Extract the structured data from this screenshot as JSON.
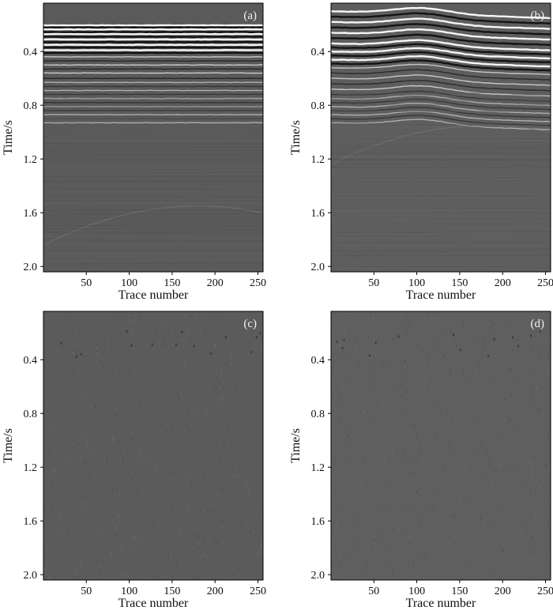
{
  "chart_data": [
    {
      "type": "heatmap",
      "panel_label": "(a)",
      "xlabel": "Trace number",
      "ylabel": "Time/s",
      "xticks": [
        50,
        100,
        150,
        200,
        250
      ],
      "yticks": [
        0.4,
        0.8,
        1.2,
        1.6,
        2.0
      ],
      "xlim": [
        0,
        256
      ],
      "ylim": [
        0.04,
        2.04
      ],
      "colormap": "gray",
      "content": "seismic section",
      "colors": {
        "background": "#5a5a5a",
        "bright": "#ffffff",
        "dark": "#101010"
      }
    },
    {
      "type": "heatmap",
      "panel_label": "(b)",
      "xlabel": "Trace number",
      "ylabel": "Time/s",
      "xticks": [
        50,
        100,
        150,
        200,
        250
      ],
      "yticks": [
        0.4,
        0.8,
        1.2,
        1.6,
        2.0
      ],
      "xlim": [
        0,
        256
      ],
      "ylim": [
        0.04,
        2.04
      ],
      "colormap": "gray",
      "content": "seismic section",
      "colors": {
        "background": "#5e5e5e",
        "bright": "#ffffff",
        "dark": "#101010"
      }
    },
    {
      "type": "heatmap",
      "panel_label": "(c)",
      "xlabel": "Trace number",
      "ylabel": "Time/s",
      "xticks": [
        50,
        100,
        150,
        200,
        250
      ],
      "yticks": [
        0.4,
        0.8,
        1.2,
        1.6,
        2.0
      ],
      "xlim": [
        0,
        256
      ],
      "ylim": [
        0.04,
        2.04
      ],
      "colormap": "gray",
      "content": "residual noise",
      "colors": {
        "background": "#5b5b5b"
      }
    },
    {
      "type": "heatmap",
      "panel_label": "(d)",
      "xlabel": "Trace number",
      "ylabel": "Time/s",
      "xticks": [
        50,
        100,
        150,
        200,
        250
      ],
      "yticks": [
        0.4,
        0.8,
        1.2,
        1.6,
        2.0
      ],
      "xlim": [
        0,
        256
      ],
      "ylim": [
        0.04,
        2.04
      ],
      "colormap": "gray",
      "content": "residual noise",
      "colors": {
        "background": "#5f5f5f"
      }
    }
  ]
}
